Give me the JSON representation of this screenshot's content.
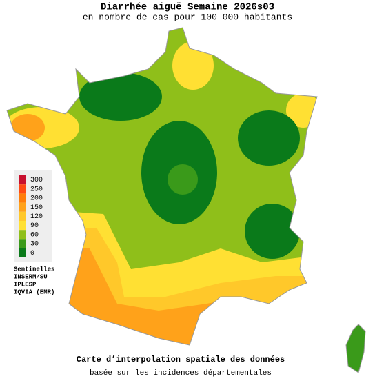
{
  "title": "Diarrhée aiguë Semaine 2026s03",
  "subtitle": "en nombre de cas pour 100 000 habitants",
  "legend": {
    "items": [
      {
        "value": 300,
        "color": "#c8102e"
      },
      {
        "value": 250,
        "color": "#ff4a14"
      },
      {
        "value": 200,
        "color": "#ff7d0a"
      },
      {
        "value": 150,
        "color": "#ffa21a"
      },
      {
        "value": 120,
        "color": "#ffc82a"
      },
      {
        "value": 90,
        "color": "#ffe033"
      },
      {
        "value": 60,
        "color": "#8fbf1a"
      },
      {
        "value": 30,
        "color": "#3a9a1a"
      },
      {
        "value": 0,
        "color": "#0a7a1a"
      }
    ]
  },
  "sources": [
    "Sentinelles",
    "INSERM/SU",
    "IPLESP",
    "IQVIA (EMR)"
  ],
  "footer": {
    "line1": "Carte d’interpolation spatiale des données",
    "line2": "basée sur les incidences départementales"
  }
}
